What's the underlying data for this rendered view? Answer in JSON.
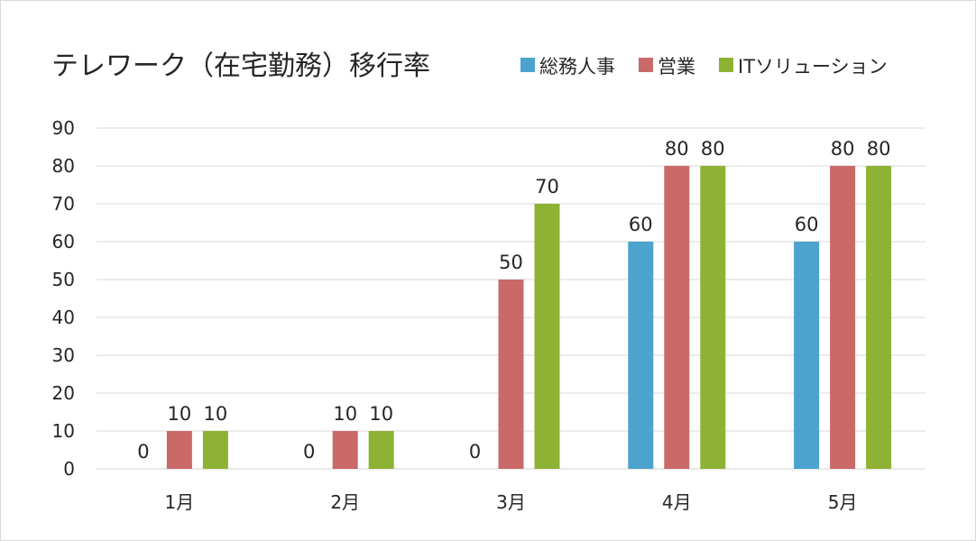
{
  "chart_data": {
    "type": "bar",
    "title": "テレワーク（在宅勤務）移行率",
    "xlabel": "",
    "ylabel": "",
    "categories": [
      "1月",
      "2月",
      "3月",
      "4月",
      "5月"
    ],
    "series": [
      {
        "name": "総務人事",
        "color": "#4BA3CE",
        "values": [
          0,
          0,
          0,
          60,
          60
        ]
      },
      {
        "name": "営業",
        "color": "#C96A68",
        "values": [
          10,
          10,
          50,
          80,
          80
        ]
      },
      {
        "name": "ITソリューション",
        "color": "#8DB234",
        "values": [
          10,
          10,
          70,
          80,
          80
        ]
      }
    ],
    "ylim": [
      0,
      90
    ],
    "yticks": [
      0,
      10,
      20,
      30,
      40,
      50,
      60,
      70,
      80,
      90
    ],
    "grid": true,
    "legend": "top-right",
    "data_labels": true
  }
}
